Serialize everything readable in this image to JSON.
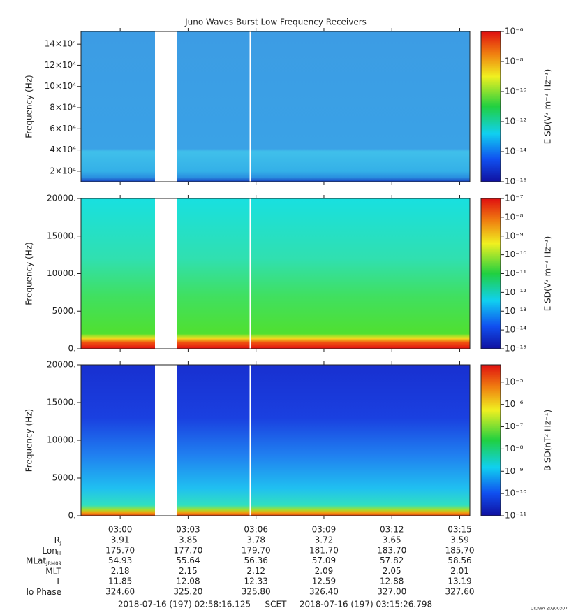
{
  "title": "Juno Waves Burst Low Frequency Receivers",
  "xticks": [
    "03:00",
    "03:03",
    "03:06",
    "03:09",
    "03:12",
    "03:15"
  ],
  "panels": [
    {
      "type": "heatmap",
      "ylabel": "Frequency (Hz)",
      "ylim": [
        10000,
        152000
      ],
      "yticks": [
        {
          "value": 20000,
          "label": "2×10⁴"
        },
        {
          "value": 40000,
          "label": "4×10⁴"
        },
        {
          "value": 60000,
          "label": "6×10⁴"
        },
        {
          "value": 80000,
          "label": "8×10⁴"
        },
        {
          "value": 100000,
          "label": "10×10⁴"
        },
        {
          "value": 120000,
          "label": "12×10⁴"
        },
        {
          "value": 140000,
          "label": "14×10⁴"
        }
      ],
      "colorbar": {
        "label": "E SD(V² m⁻² Hz⁻¹)",
        "log": true,
        "lim": [
          1e-16,
          1e-06
        ],
        "ticks": [
          {
            "value": 1e-16,
            "label": "10⁻¹⁶"
          },
          {
            "value": 1e-14,
            "label": "10⁻¹⁴"
          },
          {
            "value": 1e-12,
            "label": "10⁻¹²"
          },
          {
            "value": 1e-10,
            "label": "10⁻¹⁰"
          },
          {
            "value": 1e-08,
            "label": "10⁻⁸"
          },
          {
            "value": 1e-06,
            "label": "10⁻⁶"
          }
        ]
      }
    },
    {
      "type": "heatmap",
      "ylabel": "Frequency (Hz)",
      "ylim": [
        0,
        20000
      ],
      "yticks": [
        {
          "value": 0,
          "label": "0."
        },
        {
          "value": 5000,
          "label": "5000."
        },
        {
          "value": 10000,
          "label": "10000."
        },
        {
          "value": 15000,
          "label": "15000."
        },
        {
          "value": 20000,
          "label": "20000."
        }
      ],
      "colorbar": {
        "label": "E SD(V² m⁻² Hz⁻¹)",
        "log": true,
        "lim": [
          1e-15,
          1e-07
        ],
        "ticks": [
          {
            "value": 1e-15,
            "label": "10⁻¹⁵"
          },
          {
            "value": 1e-14,
            "label": "10⁻¹⁴"
          },
          {
            "value": 1e-13,
            "label": "10⁻¹³"
          },
          {
            "value": 1e-12,
            "label": "10⁻¹²"
          },
          {
            "value": 1e-11,
            "label": "10⁻¹¹"
          },
          {
            "value": 1e-10,
            "label": "10⁻¹⁰"
          },
          {
            "value": 1e-09,
            "label": "10⁻⁹"
          },
          {
            "value": 1e-08,
            "label": "10⁻⁸"
          },
          {
            "value": 1e-07,
            "label": "10⁻⁷"
          }
        ]
      }
    },
    {
      "type": "heatmap",
      "ylabel": "Frequency (Hz)",
      "ylim": [
        0,
        20000
      ],
      "yticks": [
        {
          "value": 0,
          "label": "0."
        },
        {
          "value": 5000,
          "label": "5000."
        },
        {
          "value": 10000,
          "label": "10000."
        },
        {
          "value": 15000,
          "label": "15000."
        },
        {
          "value": 20000,
          "label": "20000."
        }
      ],
      "colorbar": {
        "label": "B SD(nT² Hz⁻¹)",
        "log": true,
        "lim": [
          1e-11,
          6e-05
        ],
        "ticks": [
          {
            "value": 1e-11,
            "label": "10⁻¹¹"
          },
          {
            "value": 1e-10,
            "label": "10⁻¹⁰"
          },
          {
            "value": 1e-09,
            "label": "10⁻⁹"
          },
          {
            "value": 1e-08,
            "label": "10⁻⁸"
          },
          {
            "value": 1e-07,
            "label": "10⁻⁷"
          },
          {
            "value": 1e-06,
            "label": "10⁻⁶"
          },
          {
            "value": 1e-05,
            "label": "10⁻⁵"
          }
        ]
      }
    }
  ],
  "ephemeris": [
    {
      "label": "R",
      "sub": "J",
      "values": [
        "3.91",
        "3.85",
        "3.78",
        "3.72",
        "3.65",
        "3.59"
      ]
    },
    {
      "label": "Lon",
      "sub": "III",
      "values": [
        "175.70",
        "177.70",
        "179.70",
        "181.70",
        "183.70",
        "185.70"
      ]
    },
    {
      "label": "MLat",
      "sub": "JRM09",
      "values": [
        "54.93",
        "55.64",
        "56.36",
        "57.09",
        "57.82",
        "58.56"
      ]
    },
    {
      "label": "MLT",
      "values": [
        "2.18",
        "2.15",
        "2.12",
        "2.09",
        "2.05",
        "2.01"
      ]
    },
    {
      "label": "L",
      "values": [
        "11.85",
        "12.08",
        "12.33",
        "12.59",
        "12.88",
        "13.19"
      ]
    },
    {
      "label": "Io Phase",
      "values": [
        "324.60",
        "325.20",
        "325.80",
        "326.40",
        "327.00",
        "327.60"
      ]
    }
  ],
  "footer": {
    "start": "2018-07-16 (197) 02:58:16.125",
    "frame": "SCET",
    "end": "2018-07-16 (197) 03:15:26.798"
  },
  "credit": "UIOWA 20200307"
}
